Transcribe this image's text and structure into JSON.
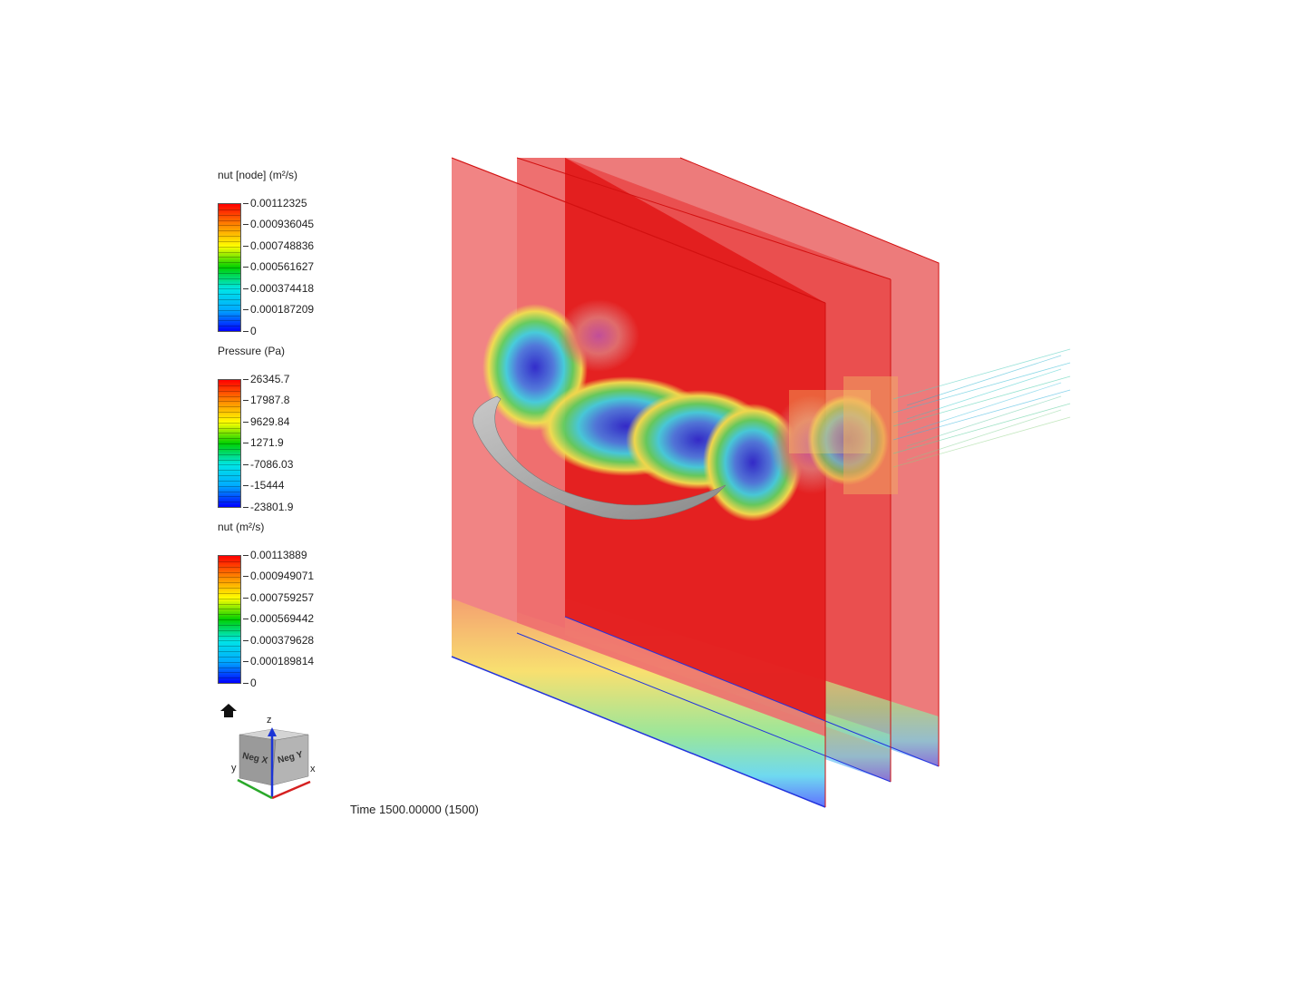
{
  "legends": [
    {
      "title": "nut [node] (m²/s)",
      "labels": [
        "0.00112325",
        "0.000936045",
        "0.000748836",
        "0.000561627",
        "0.000374418",
        "0.000187209",
        "0"
      ]
    },
    {
      "title": "Pressure (Pa)",
      "labels": [
        "26345.7",
        "17987.8",
        "9629.84",
        "1271.9",
        "-7086.03",
        "-15444",
        "-23801.9"
      ]
    },
    {
      "title": "nut (m²/s)",
      "labels": [
        "0.00113889",
        "0.000949071",
        "0.000759257",
        "0.000569442",
        "0.000379628",
        "0.000189814",
        "0"
      ]
    }
  ],
  "colormap": [
    "#0000ff",
    "#00aaff",
    "#00e6e6",
    "#00d000",
    "#ffff00",
    "#ff8800",
    "#ff0000"
  ],
  "time_label": "Time 1500.00000 (1500)",
  "view_cube": {
    "axis_z": "z",
    "axis_y": "y",
    "axis_x": "x",
    "face_left": "Neg X",
    "face_right": "Neg Y"
  },
  "icons": {
    "home": "home-icon",
    "view_cube": "view-cube-icon"
  }
}
